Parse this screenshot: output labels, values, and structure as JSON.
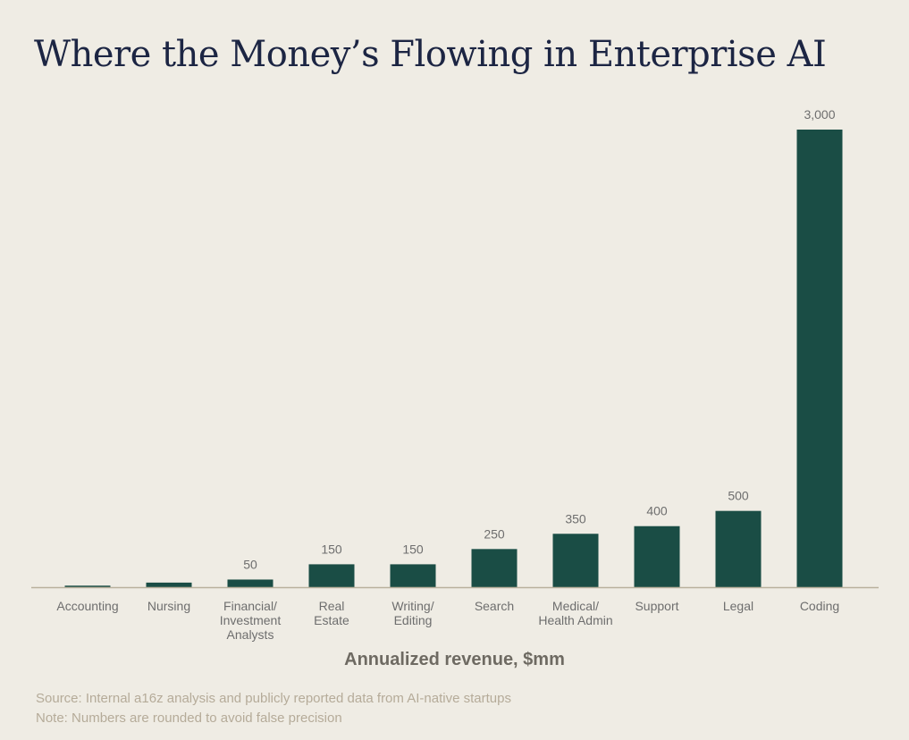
{
  "chart_data": {
    "type": "bar",
    "title": "Where the Money’s Flowing in Enterprise AI",
    "xlabel": "Annualized revenue, $mm",
    "ylabel": "",
    "categories": [
      [
        "Accounting"
      ],
      [
        "Nursing"
      ],
      [
        "Financial/",
        "Investment",
        "Analysts"
      ],
      [
        "Real",
        "Estate"
      ],
      [
        "Writing/",
        "Editing"
      ],
      [
        "Search"
      ],
      [
        "Medical/",
        "Health Admin"
      ],
      [
        "Support"
      ],
      [
        "Legal"
      ],
      [
        "Coding"
      ]
    ],
    "values": [
      10,
      30,
      50,
      150,
      150,
      250,
      350,
      400,
      500,
      3000
    ],
    "data_labels": [
      "",
      "",
      "50",
      "150",
      "150",
      "250",
      "350",
      "400",
      "500",
      "3,000"
    ],
    "ylim": [
      0,
      3000
    ],
    "grid": false,
    "bar_color": "#1a4d45"
  },
  "footer": {
    "source": "Source: Internal a16z analysis and publicly reported data from AI-native startups",
    "note": "Note: Numbers are rounded to avoid false precision"
  }
}
